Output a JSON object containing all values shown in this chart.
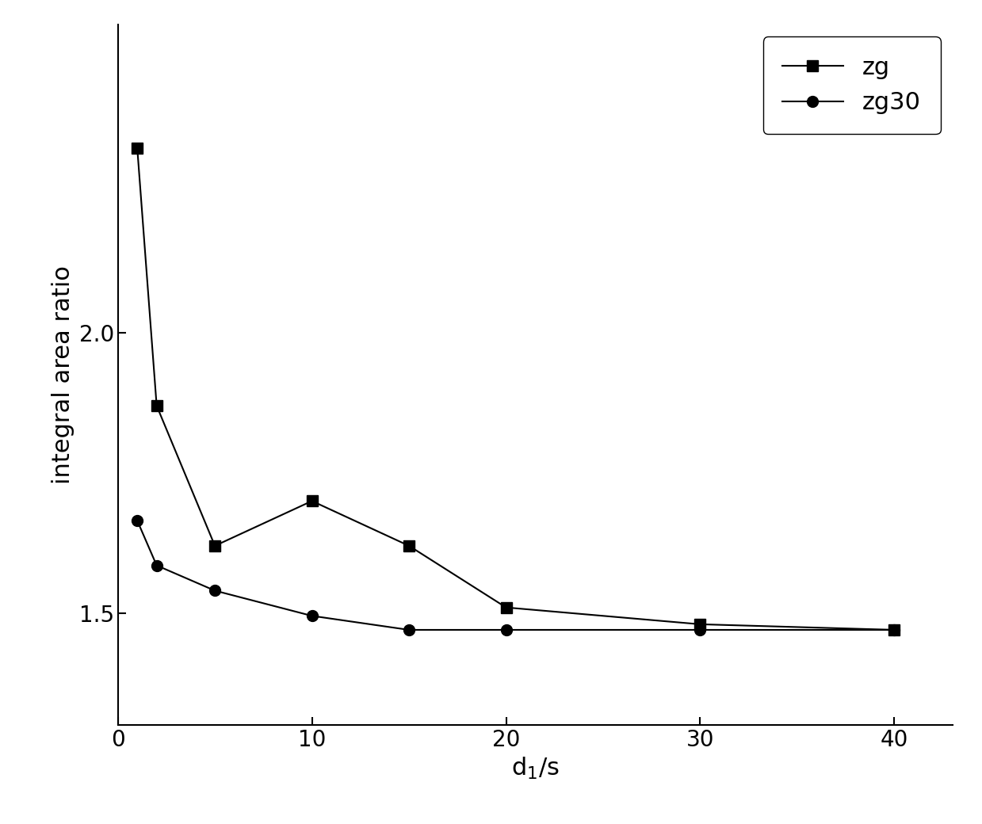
{
  "zg_x": [
    1,
    2,
    5,
    10,
    15,
    20,
    30,
    40
  ],
  "zg_y": [
    2.33,
    1.87,
    1.62,
    1.7,
    1.62,
    1.51,
    1.48,
    1.47
  ],
  "zg30_x": [
    1,
    2,
    5,
    10,
    15,
    20,
    30,
    40
  ],
  "zg30_y": [
    1.665,
    1.585,
    1.54,
    1.495,
    1.47,
    1.47,
    1.47,
    1.47
  ],
  "xlabel": "d$_1$/s",
  "ylabel": "integral area ratio",
  "xlim": [
    0,
    43
  ],
  "ylim": [
    1.3,
    2.55
  ],
  "yticks": [
    1.5,
    2.0
  ],
  "xticks": [
    0,
    10,
    20,
    30,
    40
  ],
  "legend_labels": [
    "zg",
    "zg30"
  ],
  "line_color": "#000000",
  "background_color": "#ffffff",
  "marker_zg": "s",
  "marker_zg30": "o",
  "markersize": 10,
  "linewidth": 1.5,
  "fontsize_axis_label": 22,
  "fontsize_tick": 20,
  "fontsize_legend": 22
}
